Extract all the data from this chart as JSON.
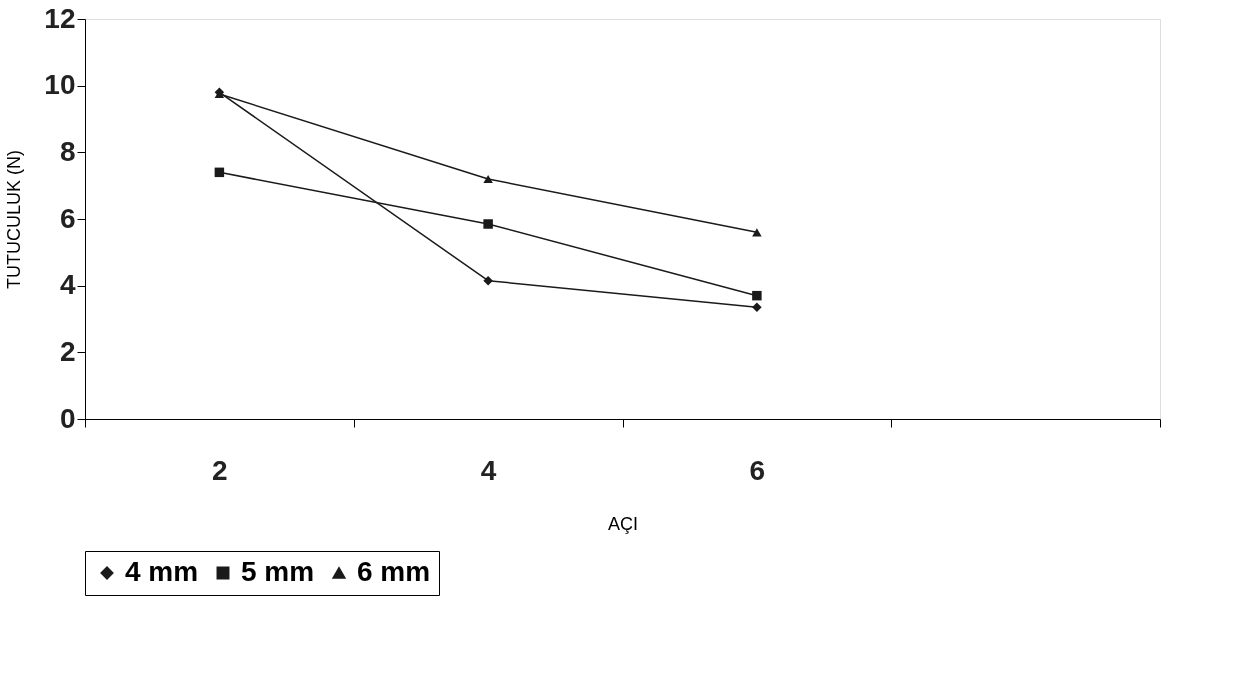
{
  "chart_data": {
    "type": "line",
    "xlabel": "AÇI",
    "ylabel": "TUTUCULUK (N)",
    "categories": [
      "2",
      "4",
      "6",
      null
    ],
    "series": [
      {
        "name": "4 mm",
        "color": "#1a1a1a",
        "marker": "diamond",
        "values": [
          9.8,
          4.15,
          3.35,
          null
        ]
      },
      {
        "name": "5 mm",
        "color": "#1a1a1a",
        "marker": "square",
        "values": [
          7.4,
          5.85,
          3.7,
          null
        ]
      },
      {
        "name": "6 mm",
        "color": "#1a1a1a",
        "marker": "triangle",
        "values": [
          9.75,
          7.2,
          5.6,
          null
        ]
      }
    ],
    "ylim": [
      0,
      12
    ],
    "yticks": [
      0,
      2,
      4,
      6,
      8,
      10,
      12
    ],
    "grid": false,
    "legend": "bottom",
    "line_style": "solid"
  }
}
